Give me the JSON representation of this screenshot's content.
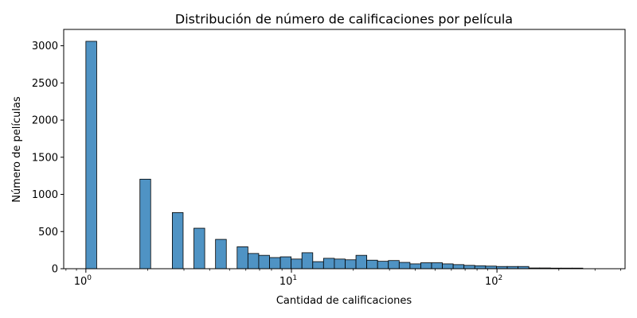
{
  "chart_data": {
    "type": "bar",
    "title": "Distribución de número de calificaciones por película",
    "xlabel": "Cantidad de calificaciones",
    "ylabel": "Número de películas",
    "x_scale": "log",
    "xlim": [
      0.78,
      420
    ],
    "ylim": [
      0,
      3220
    ],
    "grid": false,
    "y_ticks": [
      0,
      500,
      1000,
      1500,
      2000,
      2500,
      3000
    ],
    "x_ticks": [
      {
        "value": 1,
        "base": "10",
        "exp": "0"
      },
      {
        "value": 10,
        "base": "10",
        "exp": "1"
      },
      {
        "value": 100,
        "base": "10",
        "exp": "2"
      }
    ],
    "bin_edges": [
      1,
      1.129,
      1.274,
      1.438,
      1.623,
      1.832,
      2.067,
      2.333,
      2.633,
      2.972,
      3.354,
      3.786,
      4.273,
      4.823,
      5.443,
      6.143,
      6.934,
      7.826,
      8.833,
      9.969,
      11.25,
      12.7,
      14.33,
      16.18,
      18.26,
      20.61,
      23.26,
      26.25,
      29.63,
      33.44,
      37.74,
      42.6,
      48.08,
      54.26,
      61.24,
      69.12,
      78.01,
      88.05,
      99.38,
      112.2,
      126.6,
      142.9,
      161.3,
      182.0,
      205.4,
      231.9,
      261.7,
      295.4,
      333.4,
      376.3
    ],
    "values": [
      3060,
      0,
      0,
      0,
      0,
      1205,
      0,
      0,
      755,
      0,
      545,
      0,
      395,
      0,
      295,
      205,
      180,
      150,
      160,
      130,
      215,
      95,
      140,
      130,
      120,
      180,
      115,
      100,
      110,
      85,
      65,
      80,
      80,
      65,
      55,
      45,
      40,
      35,
      30,
      30,
      30,
      10,
      10,
      8,
      8,
      8,
      0,
      0,
      0
    ]
  }
}
